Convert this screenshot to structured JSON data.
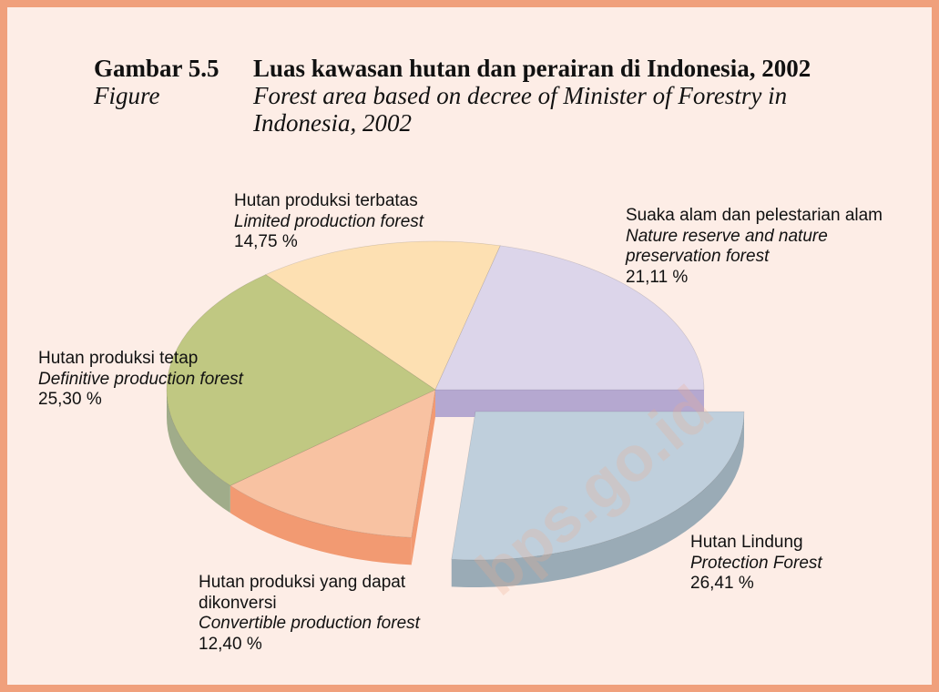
{
  "chart_data": {
    "type": "pie",
    "title_number": "Gambar 5.5",
    "title": "Luas kawasan hutan dan perairan di Indonesia, 2002",
    "subtitle_label": "Figure",
    "subtitle": "Forest area based on decree of Minister of Forestry in Indonesia, 2002",
    "categories": [
      "Hutan Lindung",
      "Hutan produksi yang dapat dikonversi",
      "Hutan produksi tetap",
      "Hutan produksi terbatas",
      "Suaka alam dan pelestarian alam"
    ],
    "categories_en": [
      "Protection Forest",
      "Convertible production forest",
      "Definitive production forest",
      "Limited production forest",
      "Nature reserve and nature preservation forest"
    ],
    "values": [
      26.41,
      12.4,
      25.3,
      14.75,
      21.11
    ],
    "value_labels": [
      "26,41 %",
      "12,40 %",
      "25,30 %",
      "14,75 %",
      "21,11 %"
    ],
    "colors": [
      "#bfcfdc",
      "#f8c2a2",
      "#c0c882",
      "#fde0b2",
      "#dcd5ea"
    ],
    "side_colors": [
      "#9aabb6",
      "#f29a72",
      "#a0ac8a",
      "#e8c890",
      "#b5a8d0"
    ],
    "exploded": [
      true,
      false,
      false,
      false,
      false
    ],
    "watermark": "bps.go.id"
  }
}
